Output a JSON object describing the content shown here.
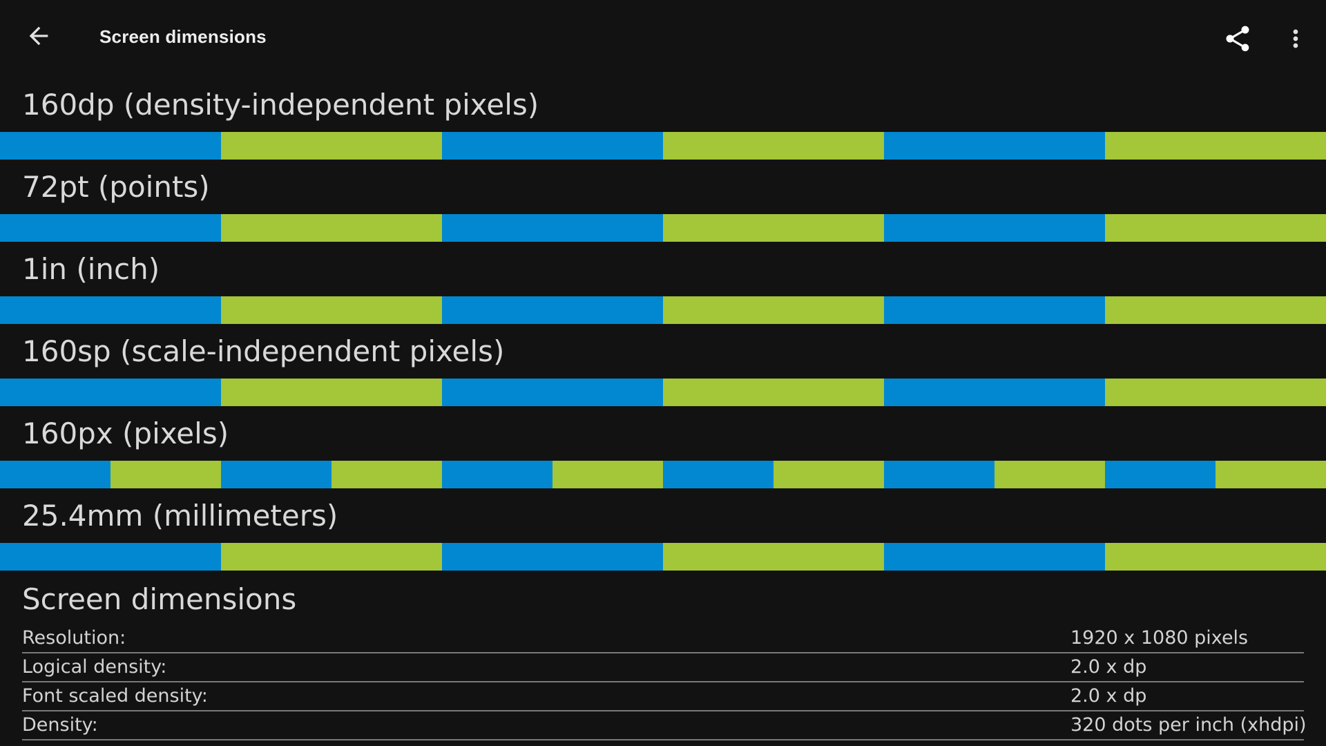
{
  "appbar": {
    "title": "Screen dimensions",
    "back_icon": "arrow-back-icon",
    "share_icon": "share-icon",
    "more_icon": "more-vert-icon"
  },
  "colors": {
    "background": "#121212",
    "blue": "#0288d1",
    "green": "#a4c639"
  },
  "units": [
    {
      "label": "160dp (density-independent pixels)",
      "segments": 6
    },
    {
      "label": "72pt (points)",
      "segments": 6
    },
    {
      "label": "1in (inch)",
      "segments": 6
    },
    {
      "label": "160sp (scale-independent pixels)",
      "segments": 6
    },
    {
      "label": "160px (pixels)",
      "segments": 12
    },
    {
      "label": "25.4mm (millimeters)",
      "segments": 6
    }
  ],
  "info": {
    "title": "Screen dimensions",
    "rows": [
      {
        "key": "Resolution:",
        "value": "1920 x 1080 pixels"
      },
      {
        "key": "Logical density:",
        "value": "2.0 x dp"
      },
      {
        "key": "Font scaled density:",
        "value": "2.0 x dp"
      },
      {
        "key": "Density:",
        "value": "320 dots per inch (xhdpi)"
      }
    ]
  }
}
